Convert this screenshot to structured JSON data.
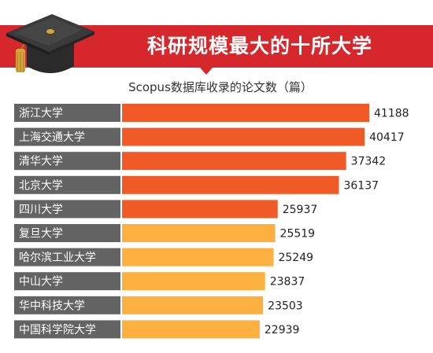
{
  "title": "科研规模最大的十所大学",
  "subtitle": "Scopus数据库收录的论文数（篇）",
  "colors": {
    "banner": "#d5272c",
    "label_bg": "#636363",
    "label_text": "#ffffff",
    "bar_top": "#ef5a27",
    "bar_rest": "#fbb040"
  },
  "chart_data": {
    "type": "bar",
    "orientation": "horizontal",
    "categories": [
      "浙江大学",
      "上海交通大学",
      "清华大学",
      "北京大学",
      "四川大学",
      "复旦大学",
      "哈尔滨工业大学",
      "中山大学",
      "华中科技大学",
      "中国科学院大学"
    ],
    "values": [
      41188,
      40417,
      37342,
      36137,
      25937,
      25519,
      25249,
      23837,
      23503,
      22939
    ],
    "data_labels": [
      "41188",
      "40417",
      "37342",
      "36137",
      "25937",
      "25519",
      "25249",
      "23837",
      "23503",
      "22939"
    ],
    "highlight_count": 5,
    "title": "科研规模最大的十所大学",
    "ylabel": "Scopus数据库收录的论文数（篇）",
    "xlim": [
      0,
      41188
    ],
    "grid": false,
    "legend": "none"
  }
}
